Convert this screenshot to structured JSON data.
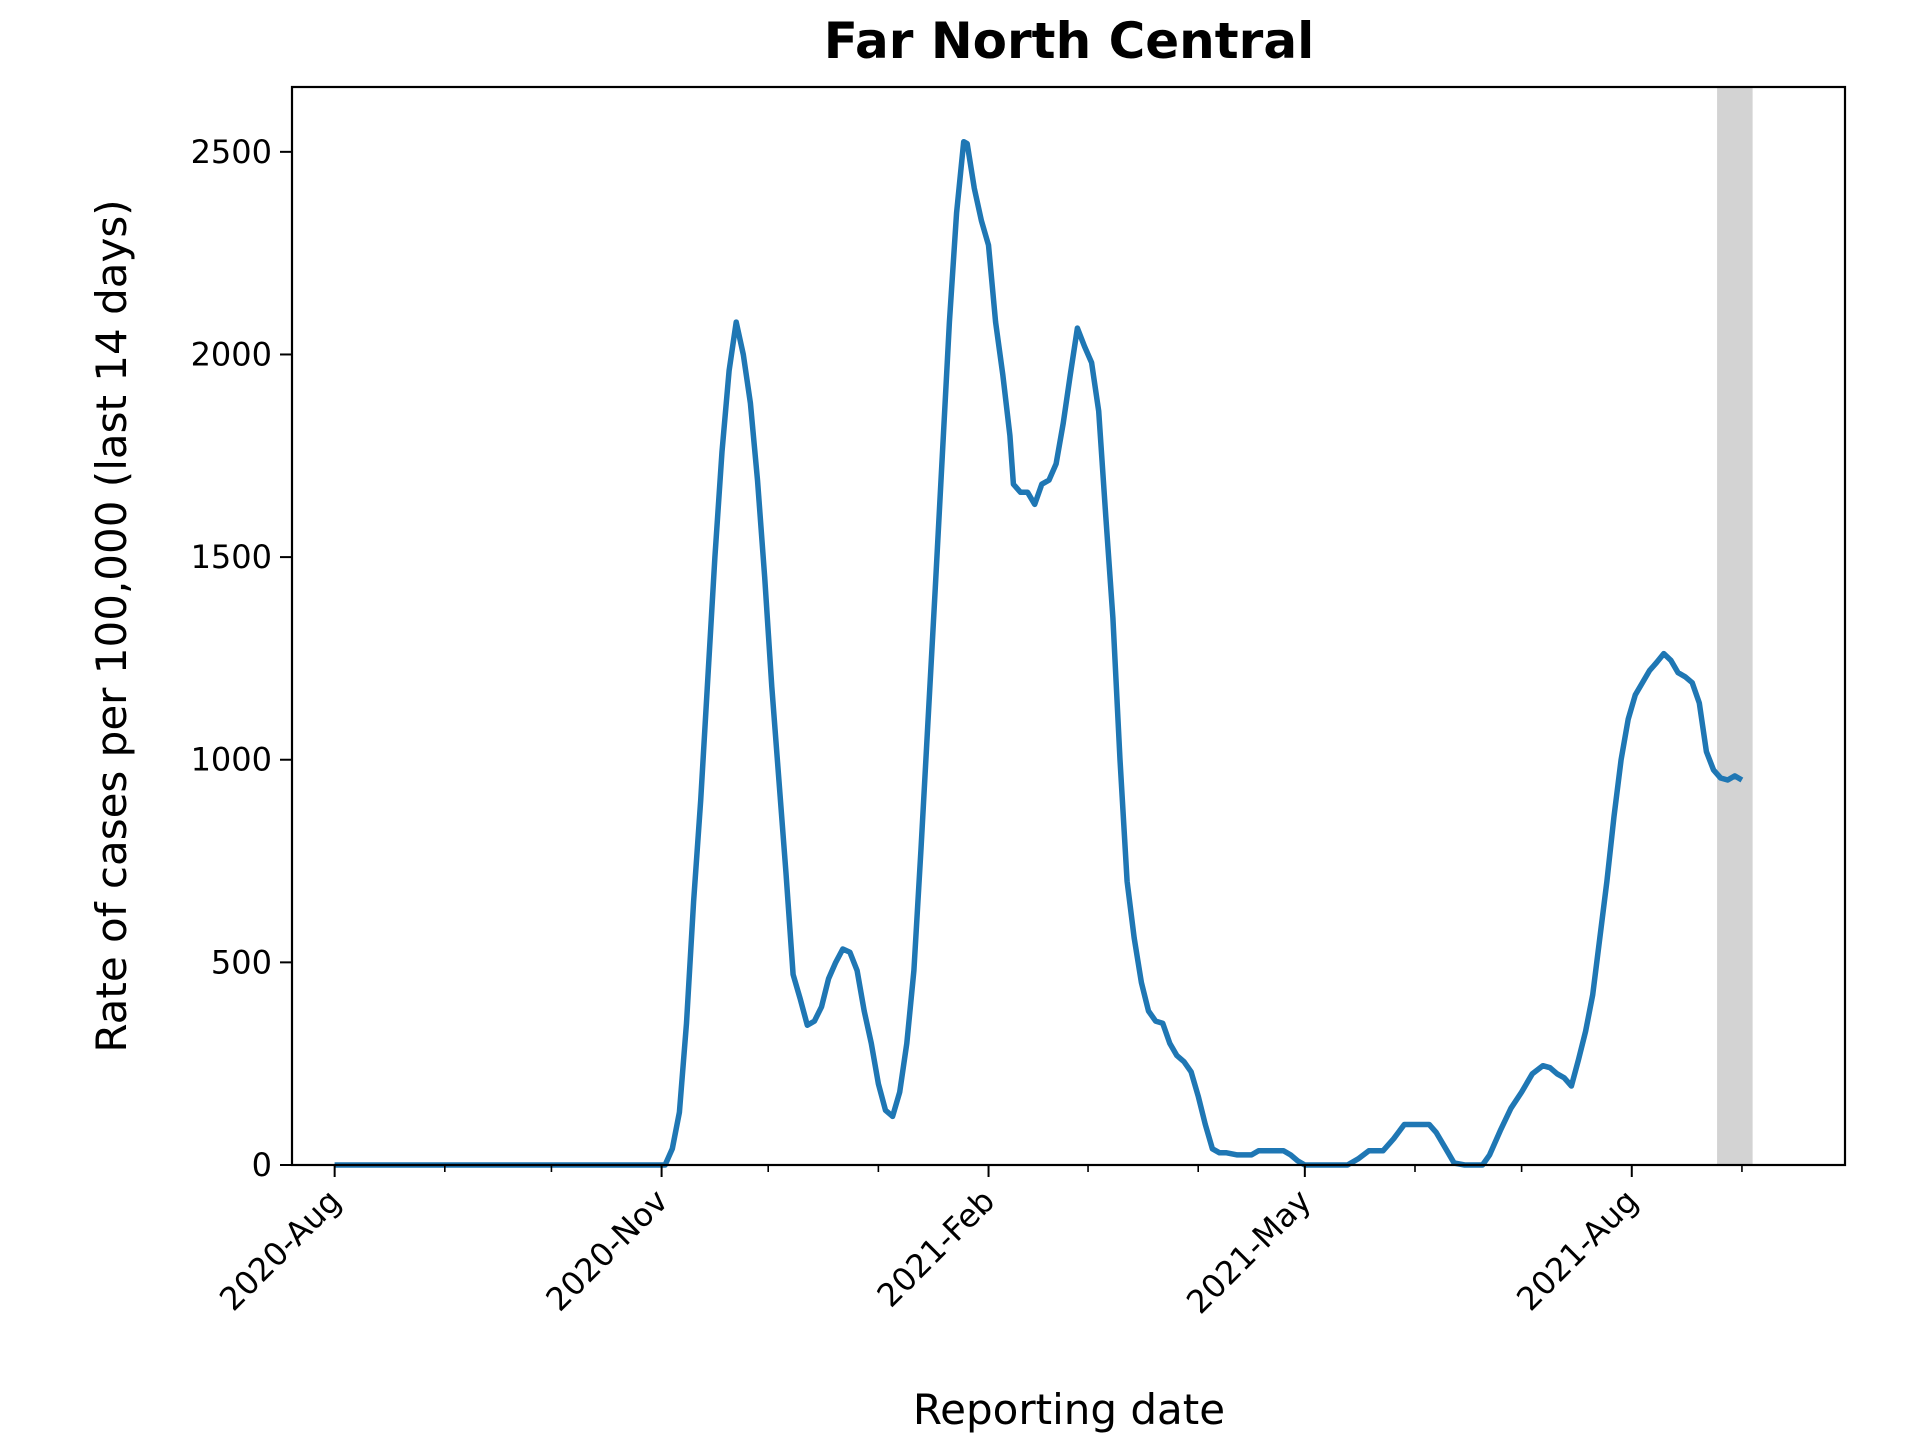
{
  "chart_data": {
    "type": "line",
    "title": "Far North Central",
    "xlabel": "Reporting date",
    "ylabel": "Rate of cases per 100,000 (last 14 days)",
    "ylim": [
      0,
      2660
    ],
    "xlim": [
      "2020-07-20",
      "2021-09-30"
    ],
    "y_ticks": [
      0,
      500,
      1000,
      1500,
      2000,
      2500
    ],
    "x_ticks": [
      {
        "date": "2020-08-01",
        "label": "2020-Aug"
      },
      {
        "date": "2020-11-01",
        "label": "2020-Nov"
      },
      {
        "date": "2021-02-01",
        "label": "2021-Feb"
      },
      {
        "date": "2021-05-01",
        "label": "2021-May"
      },
      {
        "date": "2021-08-01",
        "label": "2021-Aug"
      }
    ],
    "x_minor_ticks": [
      "2020-09-01",
      "2020-10-01",
      "2020-12-01",
      "2021-01-01",
      "2021-03-01",
      "2021-04-01",
      "2021-06-01",
      "2021-07-01",
      "2021-09-01"
    ],
    "grid": false,
    "shaded_region": {
      "start": "2021-08-25",
      "end": "2021-09-04",
      "color": "#d3d3d3"
    },
    "series": [
      {
        "color": "#1f77b4",
        "points": [
          [
            "2020-08-01",
            0
          ],
          [
            "2020-09-01",
            0
          ],
          [
            "2020-10-01",
            0
          ],
          [
            "2020-10-30",
            0
          ],
          [
            "2020-11-02",
            0
          ],
          [
            "2020-11-04",
            40
          ],
          [
            "2020-11-06",
            130
          ],
          [
            "2020-11-08",
            350
          ],
          [
            "2020-11-10",
            650
          ],
          [
            "2020-11-12",
            900
          ],
          [
            "2020-11-14",
            1200
          ],
          [
            "2020-11-16",
            1500
          ],
          [
            "2020-11-18",
            1760
          ],
          [
            "2020-11-20",
            1960
          ],
          [
            "2020-11-22",
            2080
          ],
          [
            "2020-11-24",
            2000
          ],
          [
            "2020-11-26",
            1880
          ],
          [
            "2020-11-28",
            1690
          ],
          [
            "2020-11-30",
            1450
          ],
          [
            "2020-12-02",
            1180
          ],
          [
            "2020-12-04",
            950
          ],
          [
            "2020-12-06",
            720
          ],
          [
            "2020-12-08",
            470
          ],
          [
            "2020-12-10",
            410
          ],
          [
            "2020-12-12",
            345
          ],
          [
            "2020-12-14",
            355
          ],
          [
            "2020-12-16",
            390
          ],
          [
            "2020-12-18",
            460
          ],
          [
            "2020-12-20",
            500
          ],
          [
            "2020-12-22",
            533
          ],
          [
            "2020-12-24",
            525
          ],
          [
            "2020-12-26",
            480
          ],
          [
            "2020-12-28",
            380
          ],
          [
            "2020-12-30",
            300
          ],
          [
            "2021-01-01",
            200
          ],
          [
            "2021-01-03",
            135
          ],
          [
            "2021-01-05",
            120
          ],
          [
            "2021-01-07",
            180
          ],
          [
            "2021-01-09",
            300
          ],
          [
            "2021-01-11",
            480
          ],
          [
            "2021-01-13",
            780
          ],
          [
            "2021-01-15",
            1100
          ],
          [
            "2021-01-17",
            1420
          ],
          [
            "2021-01-19",
            1750
          ],
          [
            "2021-01-21",
            2080
          ],
          [
            "2021-01-23",
            2350
          ],
          [
            "2021-01-25",
            2525
          ],
          [
            "2021-01-26",
            2520
          ],
          [
            "2021-01-28",
            2410
          ],
          [
            "2021-01-30",
            2330
          ],
          [
            "2021-02-01",
            2270
          ],
          [
            "2021-02-03",
            2080
          ],
          [
            "2021-02-05",
            1950
          ],
          [
            "2021-02-07",
            1800
          ],
          [
            "2021-02-08",
            1680
          ],
          [
            "2021-02-10",
            1660
          ],
          [
            "2021-02-12",
            1660
          ],
          [
            "2021-02-14",
            1630
          ],
          [
            "2021-02-16",
            1680
          ],
          [
            "2021-02-18",
            1690
          ],
          [
            "2021-02-20",
            1730
          ],
          [
            "2021-02-22",
            1830
          ],
          [
            "2021-02-24",
            1950
          ],
          [
            "2021-02-26",
            2065
          ],
          [
            "2021-02-28",
            2020
          ],
          [
            "2021-03-02",
            1980
          ],
          [
            "2021-03-04",
            1860
          ],
          [
            "2021-03-06",
            1600
          ],
          [
            "2021-03-08",
            1350
          ],
          [
            "2021-03-10",
            1000
          ],
          [
            "2021-03-12",
            700
          ],
          [
            "2021-03-14",
            560
          ],
          [
            "2021-03-16",
            450
          ],
          [
            "2021-03-18",
            380
          ],
          [
            "2021-03-20",
            355
          ],
          [
            "2021-03-22",
            350
          ],
          [
            "2021-03-24",
            300
          ],
          [
            "2021-03-26",
            270
          ],
          [
            "2021-03-28",
            255
          ],
          [
            "2021-03-30",
            230
          ],
          [
            "2021-04-01",
            170
          ],
          [
            "2021-04-03",
            100
          ],
          [
            "2021-04-05",
            40
          ],
          [
            "2021-04-07",
            30
          ],
          [
            "2021-04-09",
            30
          ],
          [
            "2021-04-12",
            25
          ],
          [
            "2021-04-16",
            25
          ],
          [
            "2021-04-18",
            35
          ],
          [
            "2021-04-22",
            35
          ],
          [
            "2021-04-25",
            35
          ],
          [
            "2021-04-27",
            25
          ],
          [
            "2021-04-29",
            10
          ],
          [
            "2021-05-01",
            0
          ],
          [
            "2021-05-05",
            0
          ],
          [
            "2021-05-10",
            0
          ],
          [
            "2021-05-13",
            0
          ],
          [
            "2021-05-16",
            15
          ],
          [
            "2021-05-19",
            35
          ],
          [
            "2021-05-23",
            35
          ],
          [
            "2021-05-26",
            65
          ],
          [
            "2021-05-29",
            100
          ],
          [
            "2021-06-02",
            100
          ],
          [
            "2021-06-05",
            100
          ],
          [
            "2021-06-07",
            80
          ],
          [
            "2021-06-10",
            35
          ],
          [
            "2021-06-12",
            5
          ],
          [
            "2021-06-15",
            0
          ],
          [
            "2021-06-20",
            0
          ],
          [
            "2021-06-22",
            25
          ],
          [
            "2021-06-25",
            85
          ],
          [
            "2021-06-28",
            140
          ],
          [
            "2021-07-01",
            180
          ],
          [
            "2021-07-04",
            225
          ],
          [
            "2021-07-07",
            245
          ],
          [
            "2021-07-09",
            240
          ],
          [
            "2021-07-11",
            225
          ],
          [
            "2021-07-13",
            215
          ],
          [
            "2021-07-15",
            195
          ],
          [
            "2021-07-17",
            260
          ],
          [
            "2021-07-19",
            330
          ],
          [
            "2021-07-21",
            420
          ],
          [
            "2021-07-23",
            560
          ],
          [
            "2021-07-25",
            700
          ],
          [
            "2021-07-27",
            860
          ],
          [
            "2021-07-29",
            1000
          ],
          [
            "2021-07-31",
            1100
          ],
          [
            "2021-08-02",
            1160
          ],
          [
            "2021-08-04",
            1190
          ],
          [
            "2021-08-06",
            1220
          ],
          [
            "2021-08-08",
            1240
          ],
          [
            "2021-08-10",
            1262
          ],
          [
            "2021-08-12",
            1245
          ],
          [
            "2021-08-14",
            1215
          ],
          [
            "2021-08-16",
            1205
          ],
          [
            "2021-08-18",
            1190
          ],
          [
            "2021-08-20",
            1140
          ],
          [
            "2021-08-22",
            1020
          ],
          [
            "2021-08-24",
            975
          ],
          [
            "2021-08-26",
            955
          ],
          [
            "2021-08-28",
            950
          ],
          [
            "2021-08-30",
            960
          ],
          [
            "2021-09-01",
            950
          ]
        ]
      }
    ]
  }
}
